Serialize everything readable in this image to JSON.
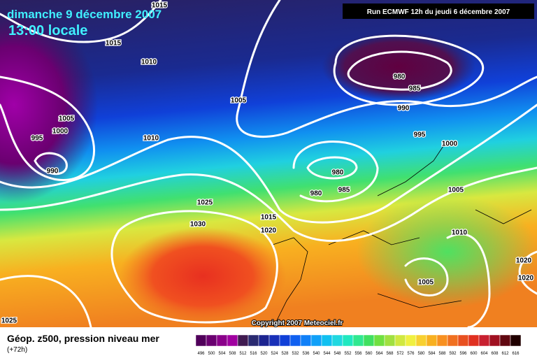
{
  "header": {
    "date": "dimanche 9 décembre 2007",
    "time": "13:00 locale",
    "run": "Run ECMWF 12h du jeudi 6 décembre 2007"
  },
  "isobar_labels": [
    1015,
    1015,
    1010,
    980,
    985,
    990,
    1005,
    1005,
    1000,
    995,
    1010,
    995,
    1000,
    990,
    980,
    985,
    980,
    1005,
    1025,
    1015,
    1030,
    1020,
    1010,
    1020,
    1020,
    1005,
    1025
  ],
  "copyright": "Copyright 2007 Meteociel.fr",
  "footer": {
    "title": "Géop. z500, pression niveau mer",
    "lead": "(+72h)"
  },
  "legend": {
    "labels": [
      496,
      500,
      504,
      508,
      512,
      516,
      520,
      524,
      528,
      532,
      536,
      540,
      544,
      548,
      552,
      556,
      560,
      564,
      568,
      572,
      576,
      580,
      584,
      588,
      592,
      596,
      600,
      604,
      608,
      612,
      616
    ],
    "colors": [
      "#50005a",
      "#6a0070",
      "#8a008a",
      "#a000a0",
      "#401a50",
      "#2a2a70",
      "#1c2490",
      "#1830b8",
      "#1040d8",
      "#1060f0",
      "#1080f8",
      "#10a0f8",
      "#10c0f0",
      "#20d8e0",
      "#20e8c0",
      "#30e890",
      "#40e060",
      "#70e040",
      "#a0e040",
      "#d0e840",
      "#f0f040",
      "#f8d030",
      "#f8b020",
      "#f89020",
      "#f07020",
      "#e85020",
      "#e03020",
      "#c82030",
      "#a01020",
      "#600810",
      "#200000"
    ]
  }
}
